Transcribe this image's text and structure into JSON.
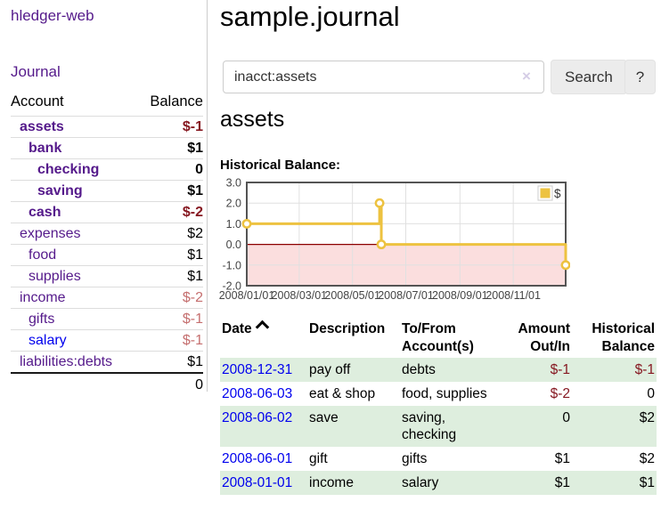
{
  "app": {
    "brand": "hledger-web"
  },
  "sidebar": {
    "journal_link": "Journal",
    "accounts_table": {
      "headers": {
        "account": "Account",
        "balance": "Balance"
      },
      "rows": [
        {
          "name": "assets",
          "level": 1,
          "bold": true,
          "balance": "$-1",
          "balance_style": "neg-strong"
        },
        {
          "name": "bank",
          "level": 2,
          "bold": true,
          "balance": "$1",
          "balance_style": "pos"
        },
        {
          "name": "checking",
          "level": 3,
          "bold": true,
          "balance": "0",
          "balance_style": "pos"
        },
        {
          "name": "saving",
          "level": 3,
          "bold": true,
          "balance": "$1",
          "balance_style": "pos"
        },
        {
          "name": "cash",
          "level": 2,
          "bold": true,
          "balance": "$-2",
          "balance_style": "neg-strong"
        },
        {
          "name": "expenses",
          "level": 1,
          "bold": false,
          "balance": "$2",
          "balance_style": "pos"
        },
        {
          "name": "food",
          "level": 2,
          "bold": false,
          "balance": "$1",
          "balance_style": "pos"
        },
        {
          "name": "supplies",
          "level": 2,
          "bold": false,
          "balance": "$1",
          "balance_style": "pos"
        },
        {
          "name": "income",
          "level": 1,
          "bold": false,
          "balance": "$-2",
          "balance_style": "neg-soft"
        },
        {
          "name": "gifts",
          "level": 2,
          "bold": false,
          "balance": "$-1",
          "balance_style": "neg-soft"
        },
        {
          "name": "salary",
          "level": 2,
          "bold": false,
          "link_style": "blue",
          "balance": "$-1",
          "balance_style": "neg-soft"
        },
        {
          "name": "liabilities:debts",
          "level": 1,
          "bold": false,
          "balance": "$1",
          "balance_style": "pos"
        }
      ],
      "total": "0"
    }
  },
  "main": {
    "title": "sample.journal",
    "search": {
      "value": "inacct:assets",
      "clear_icon": "×",
      "search_button": "Search",
      "help_button": "?"
    },
    "account_heading": "assets",
    "chart_label": "Historical Balance:"
  },
  "register": {
    "columns": [
      {
        "l1": "Date",
        "l2": "",
        "align": "left",
        "sortable": true,
        "sort_icon": "chevron-up"
      },
      {
        "l1": "Description",
        "l2": "",
        "align": "left"
      },
      {
        "l1": "To/From",
        "l2": "Account(s)",
        "align": "left"
      },
      {
        "l1": "Amount",
        "l2": "Out/In",
        "align": "right"
      },
      {
        "l1": "Historical",
        "l2": "Balance",
        "align": "right"
      }
    ],
    "rows": [
      {
        "date": "2008-12-31",
        "description": "pay off",
        "accounts": [
          "debts"
        ],
        "amount": "$-1",
        "amount_style": "neg-strong",
        "balance": "$-1",
        "balance_style": "neg-strong"
      },
      {
        "date": "2008-06-03",
        "description": "eat & shop",
        "accounts": [
          "food, supplies"
        ],
        "amount": "$-2",
        "amount_style": "neg-strong",
        "balance": "0",
        "balance_style": "pos"
      },
      {
        "date": "2008-06-02",
        "description": "save",
        "accounts": [
          "saving,",
          "checking"
        ],
        "amount": "0",
        "amount_style": "pos",
        "balance": "$2",
        "balance_style": "pos"
      },
      {
        "date": "2008-06-01",
        "description": "gift",
        "accounts": [
          "gifts"
        ],
        "amount": "$1",
        "amount_style": "pos",
        "balance": "$2",
        "balance_style": "pos"
      },
      {
        "date": "2008-01-01",
        "description": "income",
        "accounts": [
          "salary"
        ],
        "amount": "$1",
        "amount_style": "pos",
        "balance": "$1",
        "balance_style": "pos"
      }
    ]
  },
  "chart_data": {
    "type": "line",
    "step": true,
    "title": "Historical Balance",
    "series": [
      {
        "name": "$",
        "color": "#edc240",
        "points": [
          [
            "2008-01-01",
            1
          ],
          [
            "2008-06-01",
            2
          ],
          [
            "2008-06-03",
            0
          ],
          [
            "2008-12-31",
            -1
          ]
        ]
      }
    ],
    "x_ticks": [
      {
        "label": "2008/01/01",
        "date": "2008-01-01"
      },
      {
        "label": "2008/03/01",
        "date": "2008-03-01"
      },
      {
        "label": "2008/05/01",
        "date": "2008-05-01"
      },
      {
        "label": "2008/07/01",
        "date": "2008-07-01"
      },
      {
        "label": "2008/09/01",
        "date": "2008-09-01"
      },
      {
        "label": "2008/11/01",
        "date": "2008-11-01"
      }
    ],
    "x_domain": [
      "2008-01-01",
      "2008-12-31"
    ],
    "y_ticks": [
      "3.0",
      "2.0",
      "1.0",
      "0.0",
      "-1.0",
      "-2.0"
    ],
    "ylim": [
      -2,
      3
    ],
    "grid": true,
    "legend": {
      "label": "$",
      "position": "top-right"
    },
    "negative_region_color": "#fbdede",
    "zero_line_color": "#8b0000",
    "border_color": "#545454",
    "gridline_color": "#e0e0e0"
  },
  "colors": {
    "link_purple": "#551a8b",
    "link_blue": "#0000ee",
    "negative_strong": "#861821",
    "negative_soft": "#c56f6f",
    "row_stripe_green": "#deeede",
    "chart_series_yellow": "#edc240",
    "chart_negative_pink": "#fbdede",
    "chart_zero_line": "#8b0000",
    "chart_border": "#545454",
    "button_bg": "#ececec"
  }
}
